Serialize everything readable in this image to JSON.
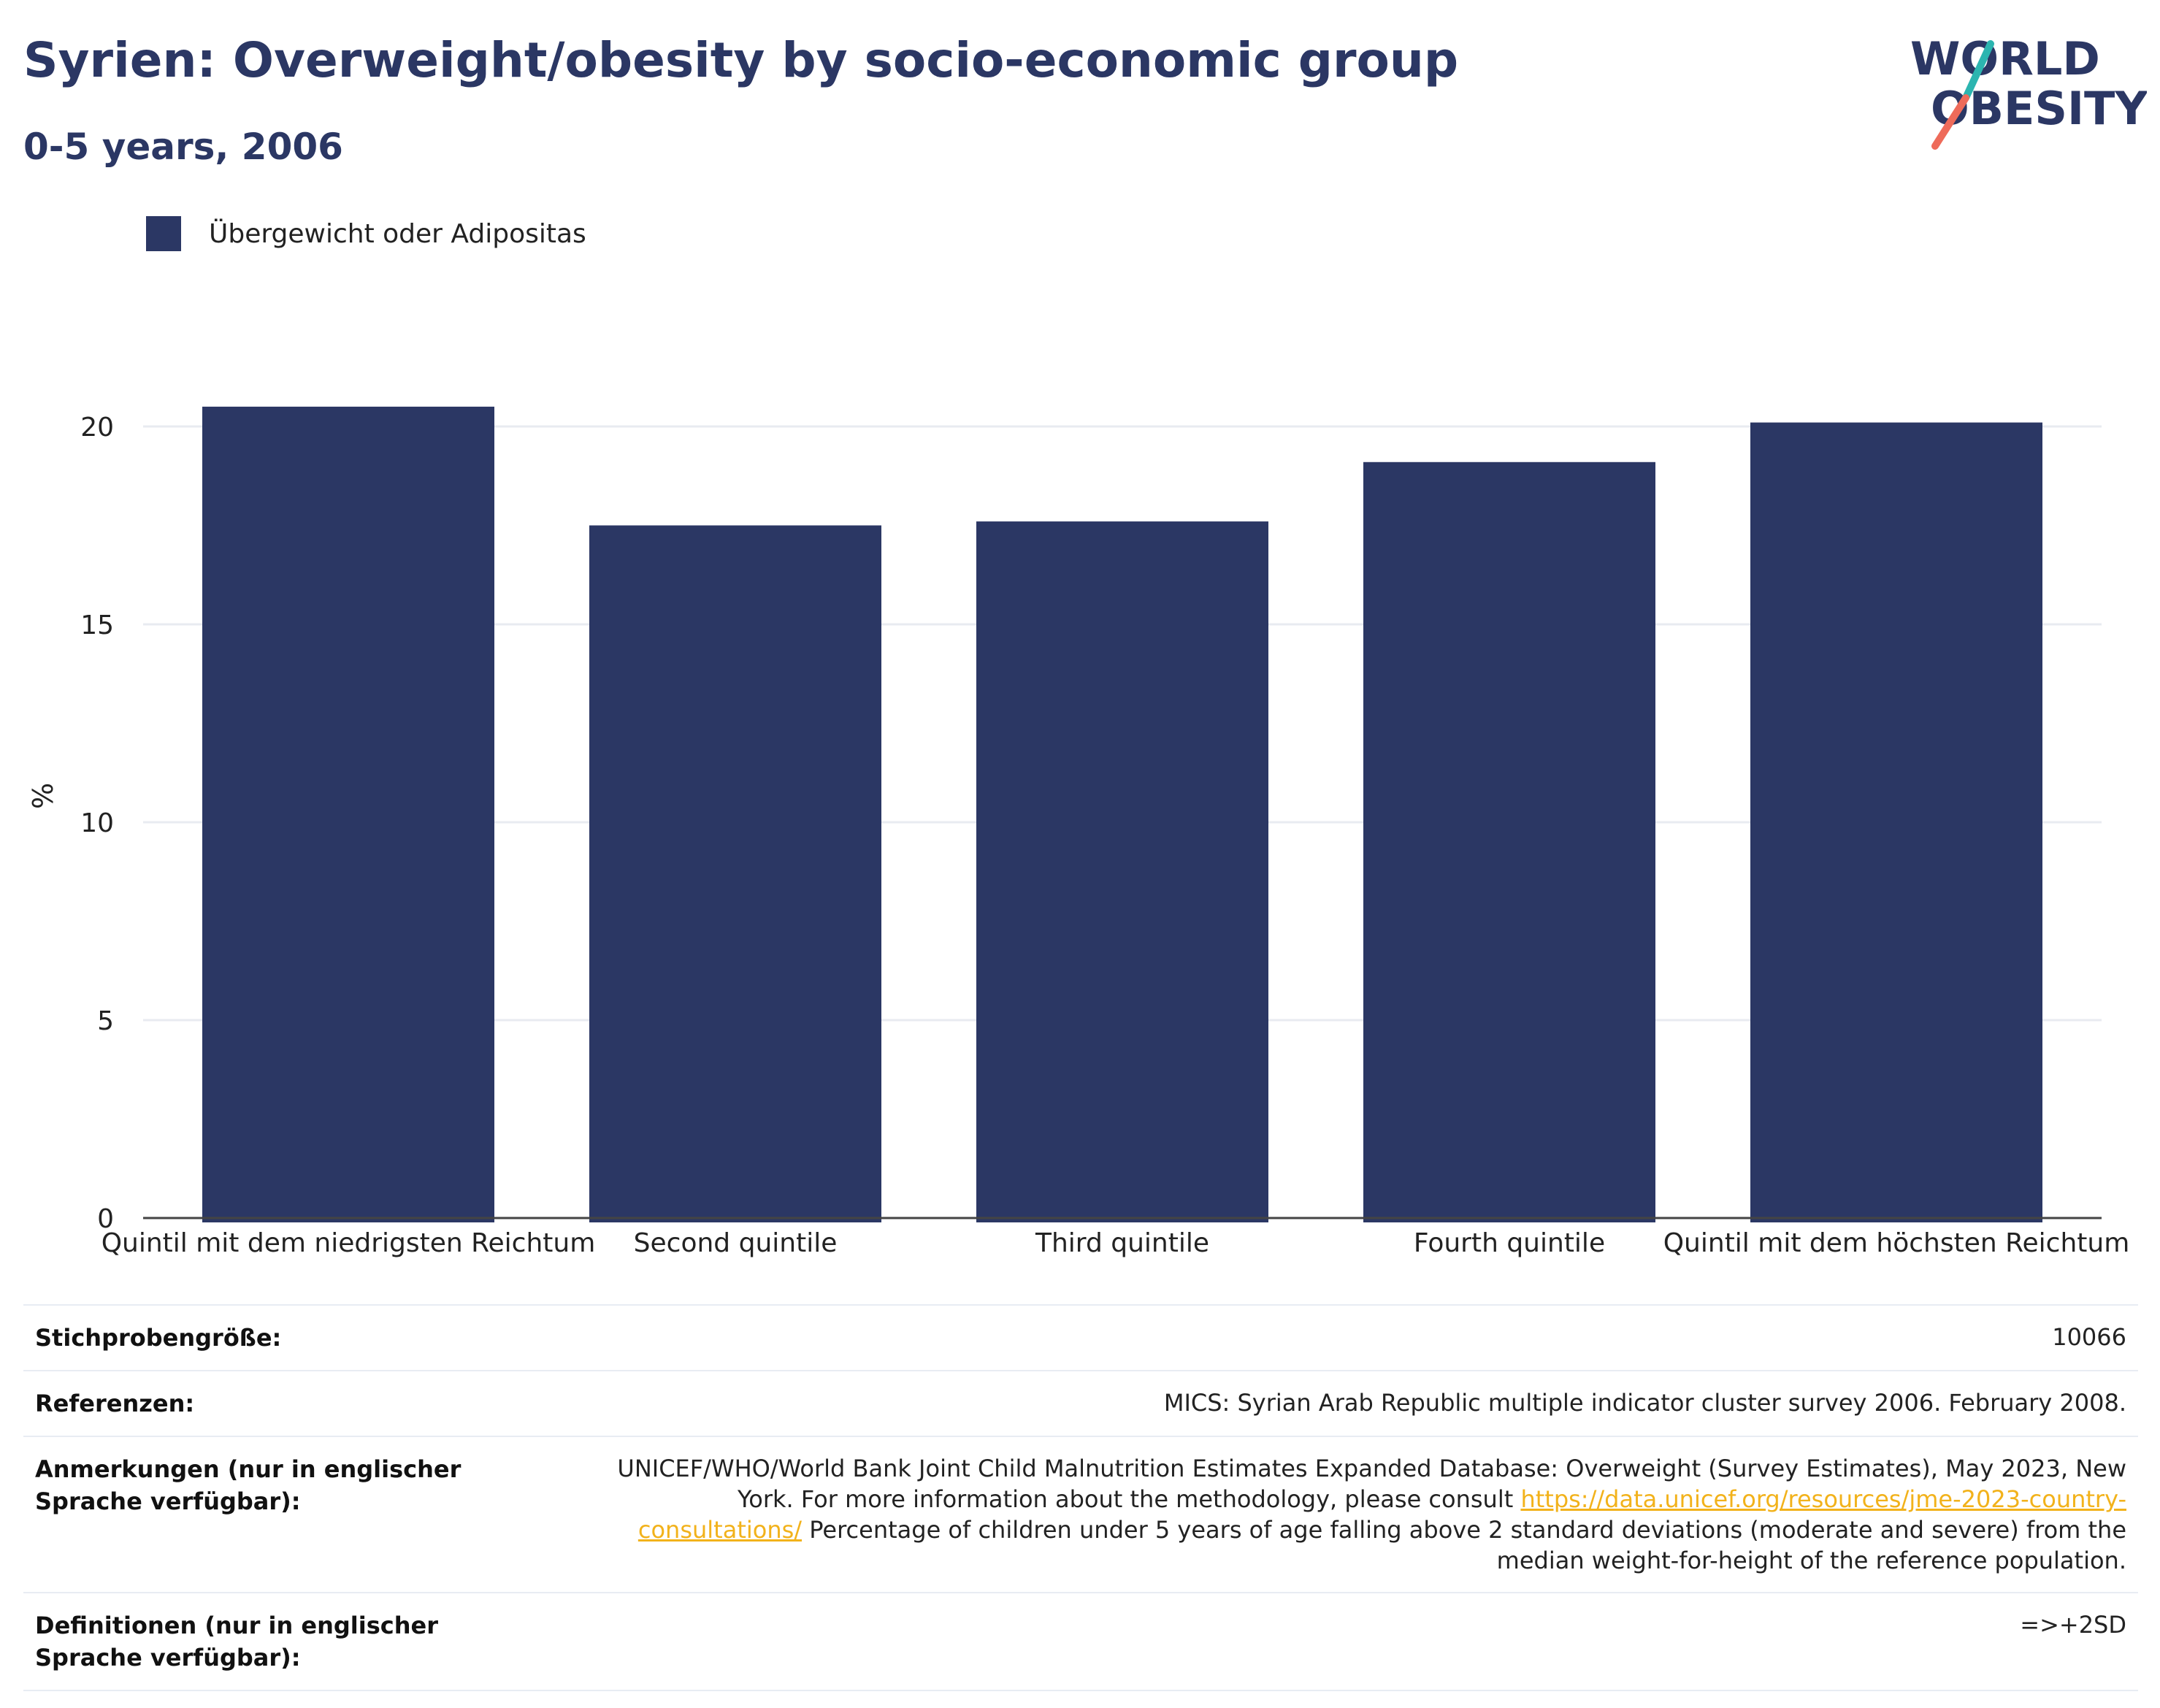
{
  "header": {
    "title": "Syrien: Overweight/obesity by socio-economic group",
    "subtitle": "0-5 years, 2006"
  },
  "logo": {
    "line1": "WORLD",
    "line2": "OBESITY",
    "colors": {
      "text": "#2b3764",
      "teal": "#2cb5b0",
      "coral": "#ee6b5a"
    }
  },
  "chart_data": {
    "type": "bar",
    "categories": [
      "Quintil mit dem niedrigsten Reichtum",
      "Second quintile",
      "Third quintile",
      "Fourth quintile",
      "Quintil mit dem höchsten Reichtum"
    ],
    "series": [
      {
        "name": "Übergewicht oder Adipositas",
        "values": [
          20.5,
          17.5,
          17.6,
          19.1,
          20.1
        ],
        "color": "#2b3764"
      }
    ],
    "ylabel": "%",
    "ylim": [
      0,
      22
    ],
    "yticks": [
      0,
      5,
      10,
      15,
      20
    ],
    "grid": true,
    "legend": "top-left"
  },
  "footer": {
    "sample_label": "Stichprobengröße:",
    "sample_value": "10066",
    "references_label": "Referenzen:",
    "references_value": "MICS: Syrian Arab Republic multiple indicator cluster survey 2006. February 2008.",
    "notes_label": "Anmerkungen (nur in englischer Sprache verfügbar):",
    "notes_text_1": "UNICEF/WHO/World Bank Joint Child Malnutrition Estimates Expanded Database: Overweight (Survey Estimates), May 2023, New York. For more information about the methodology, please consult ",
    "notes_link": "https://data.unicef.org/resources/jme-2023-country-consultations/",
    "notes_text_2": " Percentage of children under 5 years of age falling above 2 standard deviations (moderate and severe) from the median weight-for-height of the reference population.",
    "definitions_label": "Definitionen (nur in englischer Sprache verfügbar):",
    "definitions_value": "=>+2SD"
  }
}
